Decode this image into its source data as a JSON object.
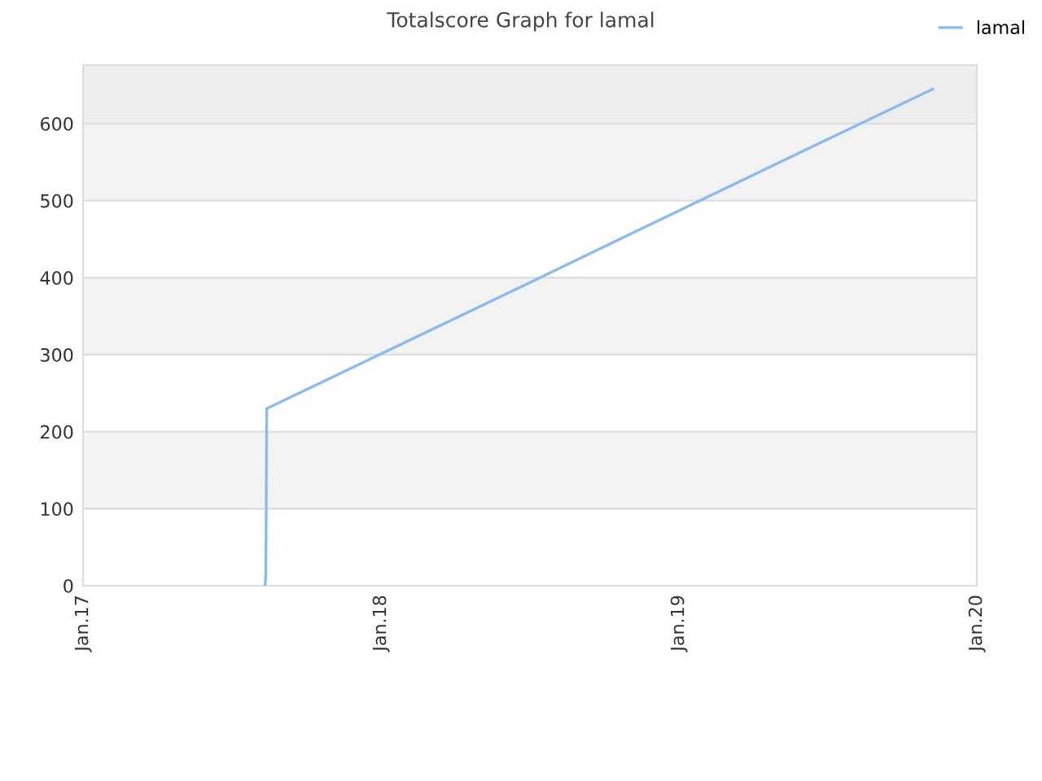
{
  "chart_data": {
    "type": "line",
    "title": "Totalscore Graph for lamal",
    "series": [
      {
        "name": "lamal",
        "color": "#88bbf0",
        "x": [
          "2017-08-12",
          "2017-08-13",
          "2017-08-14",
          "2018-01-01",
          "2018-07-01",
          "2019-01-01",
          "2019-07-01",
          "2019-11-08"
        ],
        "values": [
          0,
          15,
          230,
          301,
          393,
          487,
          579,
          645
        ]
      }
    ],
    "xlim": [
      "2017-01-01",
      "2020-01-01"
    ],
    "xticks": [
      {
        "value": "2017-01-01",
        "label": "Jan.17"
      },
      {
        "value": "2018-01-01",
        "label": "Jan.18"
      },
      {
        "value": "2019-01-01",
        "label": "Jan.19"
      },
      {
        "value": "2020-01-01",
        "label": "Jan.20"
      }
    ],
    "ylim": [
      0,
      676
    ],
    "yticks": [
      0,
      100,
      200,
      300,
      400,
      500,
      600
    ],
    "bands": [
      {
        "axis": "y",
        "from": 100,
        "to": 200,
        "color": "#f3f3f3"
      },
      {
        "axis": "y",
        "from": 300,
        "to": 400,
        "color": "#f3f3f3"
      },
      {
        "axis": "y",
        "from": 500,
        "to": 600,
        "color": "#f3f3f3"
      },
      {
        "axis": "y",
        "from": 600,
        "to": 676,
        "color": "#ededed"
      }
    ],
    "grid": "y",
    "legend": "top right",
    "marker": "none",
    "line_style": "solid"
  }
}
